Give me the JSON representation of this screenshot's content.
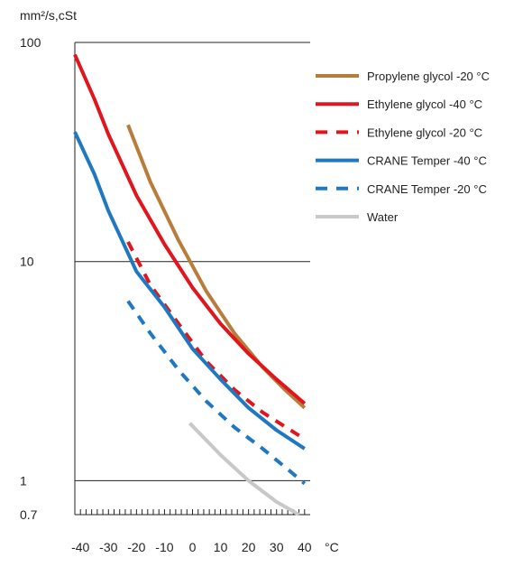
{
  "chart_data": {
    "type": "line",
    "y_scale": "log",
    "ylabel": "mm²/s,cSt",
    "xlabel": "°C",
    "xlim": [
      -42,
      42
    ],
    "ylim": [
      0.7,
      100
    ],
    "x_ticks": [
      -40,
      -30,
      -20,
      -10,
      0,
      10,
      20,
      30,
      40
    ],
    "y_ticks": [
      {
        "value": 100,
        "label": "100",
        "gridline": true
      },
      {
        "value": 10,
        "label": "10",
        "gridline": true
      },
      {
        "value": 1,
        "label": "1",
        "gridline": true
      },
      {
        "value": 0.7,
        "label": "0.7",
        "gridline": false
      }
    ],
    "legend_position": "right",
    "series": [
      {
        "name": "Propylene glycol -20 °C",
        "color": "#b87d3b",
        "style": "solid",
        "points": [
          [
            -23,
            42
          ],
          [
            -15,
            23
          ],
          [
            -5,
            12.5
          ],
          [
            5,
            7.3
          ],
          [
            15,
            4.7
          ],
          [
            25,
            3.3
          ],
          [
            33,
            2.6
          ],
          [
            40,
            2.15
          ]
        ]
      },
      {
        "name": "Ethylene glycol -40 °C",
        "color": "#e0161c",
        "style": "solid",
        "points": [
          [
            -42,
            88
          ],
          [
            -35,
            55
          ],
          [
            -30,
            38
          ],
          [
            -20,
            20
          ],
          [
            -10,
            12
          ],
          [
            0,
            7.6
          ],
          [
            10,
            5.2
          ],
          [
            20,
            3.8
          ],
          [
            30,
            2.9
          ],
          [
            40,
            2.25
          ]
        ]
      },
      {
        "name": "Ethylene glycol -20 °C",
        "color": "#e0161c",
        "style": "dashed",
        "points": [
          [
            -23,
            12.3
          ],
          [
            -15,
            7.8
          ],
          [
            -5,
            5.2
          ],
          [
            5,
            3.5
          ],
          [
            15,
            2.6
          ],
          [
            25,
            2.05
          ],
          [
            35,
            1.7
          ],
          [
            40,
            1.55
          ]
        ]
      },
      {
        "name": "CRANE Temper -40 °C",
        "color": "#1f78c1",
        "style": "solid",
        "points": [
          [
            -42,
            39
          ],
          [
            -35,
            25
          ],
          [
            -30,
            17
          ],
          [
            -20,
            9
          ],
          [
            -10,
            6.2
          ],
          [
            0,
            4.0
          ],
          [
            10,
            2.9
          ],
          [
            20,
            2.15
          ],
          [
            30,
            1.7
          ],
          [
            40,
            1.4
          ]
        ]
      },
      {
        "name": "CRANE Temper -20 °C",
        "color": "#1f78c1",
        "style": "dashed",
        "points": [
          [
            -23,
            6.6
          ],
          [
            -15,
            4.7
          ],
          [
            -5,
            3.2
          ],
          [
            5,
            2.3
          ],
          [
            15,
            1.75
          ],
          [
            25,
            1.4
          ],
          [
            35,
            1.1
          ],
          [
            40,
            0.97
          ]
        ]
      },
      {
        "name": "Water",
        "color": "#c8c8c8",
        "style": "solid",
        "points": [
          [
            -1,
            1.83
          ],
          [
            10,
            1.31
          ],
          [
            20,
            1.0
          ],
          [
            30,
            0.8
          ],
          [
            38,
            0.7
          ]
        ]
      }
    ]
  }
}
